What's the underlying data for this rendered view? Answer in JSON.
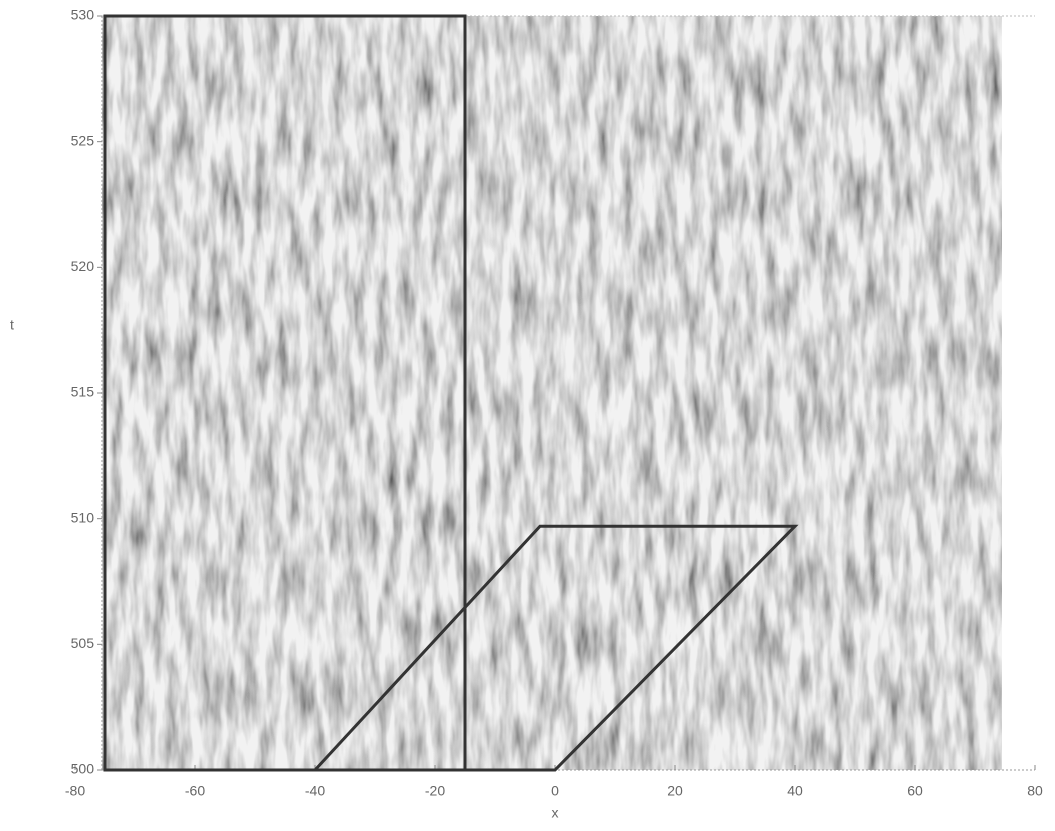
{
  "chart_data": {
    "type": "spacetime",
    "x_label": "x",
    "y_label": "t",
    "xlim": [
      -80,
      80
    ],
    "xticks": [
      -80,
      -60,
      -40,
      -20,
      0,
      20,
      40,
      60,
      80
    ],
    "ylim": [
      500,
      530
    ],
    "yticks": [
      500,
      505,
      510,
      515,
      520,
      525,
      530
    ],
    "field_xlim": [
      -75.5,
      74.5
    ],
    "overlays": [
      {
        "color": "#333333",
        "x": [
          -75,
          -15,
          -15,
          -75
        ],
        "y": [
          500,
          500,
          530,
          530
        ]
      },
      {
        "color": "#333333",
        "x": [
          -40,
          -2.5,
          40,
          0
        ],
        "y": [
          500,
          509.7,
          509.7,
          500
        ]
      }
    ]
  }
}
